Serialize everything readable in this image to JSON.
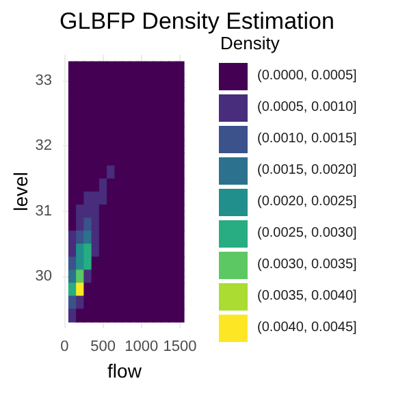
{
  "chart_data": {
    "type": "heatmap",
    "title": "GLBFP Density Estimation",
    "xlabel": "flow",
    "ylabel": "level",
    "legend_title": "Density",
    "x": [
      100,
      200,
      300,
      400,
      500,
      600,
      700,
      800,
      900,
      1000,
      1100,
      1200,
      1300,
      1400,
      1500
    ],
    "y": [
      33.2,
      33.0,
      32.8,
      32.6,
      32.4,
      32.2,
      32.0,
      31.8,
      31.6,
      31.4,
      31.2,
      31.0,
      30.8,
      30.6,
      30.4,
      30.2,
      30.0,
      29.8,
      29.6,
      29.4
    ],
    "cells": [
      [
        0.00025,
        0.00025,
        0.00025,
        0.00025,
        0.00025,
        0.00025,
        0.00025,
        0.00025,
        0.00025,
        0.00025,
        0.00025,
        0.00025,
        0.00025,
        0.00025,
        0.00025
      ],
      [
        0.00025,
        0.00025,
        0.00025,
        0.00025,
        0.00025,
        0.00025,
        0.00025,
        0.00025,
        0.00025,
        0.00025,
        0.00025,
        0.00025,
        0.00025,
        0.00025,
        0.00025
      ],
      [
        0.00025,
        0.00025,
        0.00025,
        0.00025,
        0.00025,
        0.00025,
        0.00025,
        0.00025,
        0.00025,
        0.00025,
        0.00025,
        0.00025,
        0.00025,
        0.00025,
        0.00025
      ],
      [
        0.00025,
        0.00025,
        0.00025,
        0.00025,
        0.00025,
        0.00025,
        0.00025,
        0.00025,
        0.00025,
        0.00025,
        0.00025,
        0.00025,
        0.00025,
        0.00025,
        0.00025
      ],
      [
        0.00025,
        0.00025,
        0.00025,
        0.00025,
        0.00025,
        0.00025,
        0.00025,
        0.00025,
        0.00025,
        0.00025,
        0.00025,
        0.00025,
        0.00025,
        0.00025,
        0.00025
      ],
      [
        0.00025,
        0.00025,
        0.00025,
        0.00025,
        0.00025,
        0.00025,
        0.00025,
        0.00025,
        0.00025,
        0.00025,
        0.00025,
        0.00025,
        0.00025,
        0.00025,
        0.00025
      ],
      [
        0.00025,
        0.00025,
        0.00025,
        0.00025,
        0.00025,
        0.00025,
        0.00025,
        0.00025,
        0.00025,
        0.00025,
        0.00025,
        0.00025,
        0.00025,
        0.00025,
        0.00025
      ],
      [
        0.00025,
        0.00025,
        0.00025,
        0.00025,
        0.00025,
        0.00025,
        0.00025,
        0.00025,
        0.00025,
        0.00025,
        0.00025,
        0.00025,
        0.00025,
        0.00025,
        0.00025
      ],
      [
        0.00025,
        0.00025,
        0.00025,
        0.00025,
        0.00025,
        0.00075,
        0.00025,
        0.00025,
        0.00025,
        0.00025,
        0.00025,
        0.00025,
        0.00025,
        0.00025,
        0.00025
      ],
      [
        0.00025,
        0.00025,
        0.00025,
        0.00025,
        0.00075,
        0.00025,
        0.00025,
        0.00025,
        0.00025,
        0.00025,
        0.00025,
        0.00025,
        0.00025,
        0.00025,
        0.00025
      ],
      [
        0.00025,
        0.00025,
        0.00075,
        0.00075,
        0.00075,
        0.00025,
        0.00025,
        0.00025,
        0.00025,
        0.00025,
        0.00025,
        0.00025,
        0.00025,
        0.00025,
        0.00025
      ],
      [
        0.00025,
        0.00075,
        0.00075,
        0.00075,
        0.00025,
        0.00025,
        0.00025,
        0.00025,
        0.00025,
        0.00025,
        0.00025,
        0.00025,
        0.00025,
        0.00025,
        0.00025
      ],
      [
        0.00025,
        0.00075,
        0.00125,
        0.00075,
        0.00025,
        0.00025,
        0.00025,
        0.00025,
        0.00025,
        0.00025,
        0.00025,
        0.00025,
        0.00025,
        0.00025,
        0.00025
      ],
      [
        0.00075,
        0.00125,
        0.00175,
        0.00075,
        0.00025,
        0.00025,
        0.00025,
        0.00025,
        0.00025,
        0.00025,
        0.00025,
        0.00025,
        0.00025,
        0.00025,
        0.00025
      ],
      [
        0.00075,
        0.00225,
        0.00275,
        0.00075,
        0.00025,
        0.00025,
        0.00025,
        0.00025,
        0.00025,
        0.00025,
        0.00025,
        0.00025,
        0.00025,
        0.00025,
        0.00025
      ],
      [
        0.00125,
        0.00225,
        0.00275,
        0.00025,
        0.00025,
        0.00025,
        0.00025,
        0.00025,
        0.00025,
        0.00025,
        0.00025,
        0.00025,
        0.00025,
        0.00025,
        0.00025
      ],
      [
        0.00175,
        0.00325,
        0.00075,
        0.00025,
        0.00025,
        0.00025,
        0.00025,
        0.00025,
        0.00025,
        0.00025,
        0.00025,
        0.00025,
        0.00025,
        0.00025,
        0.00025
      ],
      [
        0.00275,
        0.00425,
        0.00025,
        0.00025,
        0.00025,
        0.00025,
        0.00025,
        0.00025,
        0.00025,
        0.00025,
        0.00025,
        0.00025,
        0.00025,
        0.00025,
        0.00025
      ],
      [
        0.00125,
        0.00075,
        0.00025,
        0.00025,
        0.00025,
        0.00025,
        0.00025,
        0.00025,
        0.00025,
        0.00025,
        0.00025,
        0.00025,
        0.00025,
        0.00025,
        0.00025
      ],
      [
        0.00075,
        0.00025,
        0.00025,
        0.00025,
        0.00025,
        0.00025,
        0.00025,
        0.00025,
        0.00025,
        0.00025,
        0.00025,
        0.00025,
        0.00025,
        0.00025,
        0.00025
      ]
    ],
    "clim": [
      0,
      0.0045
    ],
    "cticks": [
      {
        "value": 0.00025,
        "label": "(0.0000, 0.0005]"
      },
      {
        "value": 0.00075,
        "label": "(0.0005, 0.0010]"
      },
      {
        "value": 0.00125,
        "label": "(0.0010, 0.0015]"
      },
      {
        "value": 0.00175,
        "label": "(0.0015, 0.0020]"
      },
      {
        "value": 0.00225,
        "label": "(0.0020, 0.0025]"
      },
      {
        "value": 0.00275,
        "label": "(0.0025, 0.0030]"
      },
      {
        "value": 0.00325,
        "label": "(0.0030, 0.0035]"
      },
      {
        "value": 0.00375,
        "label": "(0.0035, 0.0040]"
      },
      {
        "value": 0.00425,
        "label": "(0.0040, 0.0045]"
      }
    ],
    "colors": [
      "#440154",
      "#472d7b",
      "#3b528b",
      "#2c728e",
      "#21908d",
      "#27ad81",
      "#5cc863",
      "#aadc32",
      "#fde725"
    ],
    "xlim": [
      -20,
      1580
    ],
    "xticks": [
      0,
      500,
      1000,
      1500
    ],
    "ylim": [
      29.2,
      33.4
    ],
    "yticks": [
      30,
      31,
      32,
      33
    ],
    "grid": true
  }
}
